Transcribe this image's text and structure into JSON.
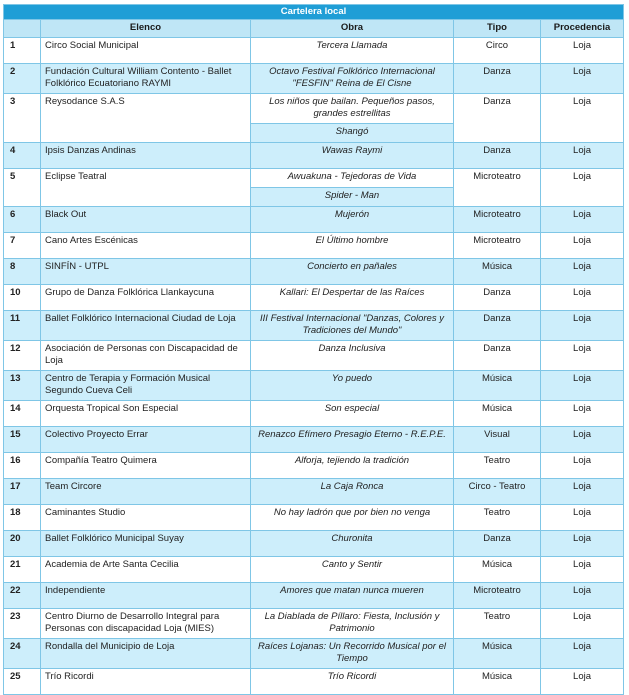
{
  "table": {
    "title": "Cartelera local",
    "headers": [
      "Elenco",
      "Obra",
      "Tipo",
      "Procedencia"
    ],
    "rows": [
      {
        "num": "1",
        "elenco": "Circo Social Municipal",
        "obra": [
          "Tercera Llamada"
        ],
        "tipo": "Circo",
        "procedencia": "Loja"
      },
      {
        "num": "2",
        "elenco": "Fundación Cultural William Contento - Ballet Folklórico Ecuatoriano RAYMI",
        "obra": [
          "Octavo Festival Folklórico Internacional \"FESFIN\" Reina de El Cisne"
        ],
        "tipo": "Danza",
        "procedencia": "Loja"
      },
      {
        "num": "3",
        "elenco": "Reysodance S.A.S",
        "obra": [
          "Los niños que bailan. Pequeños pasos, grandes estrellitas",
          "Shangó"
        ],
        "tipo": "Danza",
        "procedencia": "Loja"
      },
      {
        "num": "4",
        "elenco": "Ipsis Danzas Andinas",
        "obra": [
          "Wawas Raymi"
        ],
        "tipo": "Danza",
        "procedencia": "Loja"
      },
      {
        "num": "5",
        "elenco": "Eclipse Teatral",
        "obra": [
          "Awuakuna - Tejedoras de Vida",
          "Spider - Man"
        ],
        "tipo": "Microteatro",
        "procedencia": "Loja"
      },
      {
        "num": "6",
        "elenco": "Black Out",
        "obra": [
          "Mujerón"
        ],
        "tipo": "Microteatro",
        "procedencia": "Loja"
      },
      {
        "num": "7",
        "elenco": "Cano Artes Escénicas",
        "obra": [
          "El Último hombre"
        ],
        "tipo": "Microteatro",
        "procedencia": "Loja"
      },
      {
        "num": "8",
        "elenco": "SINFÍN - UTPL",
        "obra": [
          "Concierto en pañales"
        ],
        "tipo": "Música",
        "procedencia": "Loja"
      },
      {
        "num": "10",
        "elenco": "Grupo de Danza Folklórica Llankaycuna",
        "obra": [
          "Kallari: El Despertar de las Raíces"
        ],
        "tipo": "Danza",
        "procedencia": "Loja"
      },
      {
        "num": "11",
        "elenco": "Ballet Folklórico Internacional Ciudad de Loja",
        "obra": [
          "III Festival Internacional \"Danzas, Colores y Tradiciones del Mundo\""
        ],
        "tipo": "Danza",
        "procedencia": "Loja"
      },
      {
        "num": "12",
        "elenco": "Asociación de Personas con Discapacidad de Loja",
        "obra": [
          "Danza Inclusiva"
        ],
        "tipo": "Danza",
        "procedencia": "Loja"
      },
      {
        "num": "13",
        "elenco": "Centro de Terapia y Formación Musical Segundo Cueva Celi",
        "obra": [
          "Yo puedo"
        ],
        "tipo": "Música",
        "procedencia": "Loja"
      },
      {
        "num": "14",
        "elenco": "Orquesta Tropical Son Especial",
        "obra": [
          "Son especial"
        ],
        "tipo": "Música",
        "procedencia": "Loja"
      },
      {
        "num": "15",
        "elenco": "Colectivo Proyecto Errar",
        "obra": [
          "Renazco Efímero Presagio Eterno - R.E.P.E."
        ],
        "tipo": "Visual",
        "procedencia": "Loja"
      },
      {
        "num": "16",
        "elenco": "Compañía Teatro Quimera",
        "obra": [
          "Alforja, tejiendo la tradición"
        ],
        "tipo": "Teatro",
        "procedencia": "Loja"
      },
      {
        "num": "17",
        "elenco": "Team Circore",
        "obra": [
          "La Caja Ronca"
        ],
        "tipo": "Circo - Teatro",
        "procedencia": "Loja"
      },
      {
        "num": "18",
        "elenco": "Caminantes Studio",
        "obra": [
          "No hay ladrón que por bien no venga"
        ],
        "tipo": "Teatro",
        "procedencia": "Loja"
      },
      {
        "num": "20",
        "elenco": "Ballet Folklórico Municipal Suyay",
        "obra": [
          "Churonita"
        ],
        "tipo": "Danza",
        "procedencia": "Loja"
      },
      {
        "num": "21",
        "elenco": "Academia de Arte Santa Cecilia",
        "obra": [
          "Canto y Sentir"
        ],
        "tipo": "Música",
        "procedencia": "Loja"
      },
      {
        "num": "22",
        "elenco": "Independiente",
        "obra": [
          "Amores que matan nunca mueren"
        ],
        "tipo": "Microteatro",
        "procedencia": "Loja"
      },
      {
        "num": "23",
        "elenco": "Centro Diurno de Desarrollo Integral para Personas con discapacidad Loja (MIES)",
        "obra": [
          "La Diablada de Píllaro: Fiesta, Inclusión y Patrimonio"
        ],
        "tipo": "Teatro",
        "procedencia": "Loja"
      },
      {
        "num": "24",
        "elenco": "Rondalla del Municipio de Loja",
        "obra": [
          "Raíces Lojanas: Un Recorrido Musical por el Tiempo"
        ],
        "tipo": "Música",
        "procedencia": "Loja"
      },
      {
        "num": "25",
        "elenco": "Trío Ricordi",
        "obra": [
          "Trío Ricordi"
        ],
        "tipo": "Música",
        "procedencia": "Loja"
      }
    ]
  }
}
